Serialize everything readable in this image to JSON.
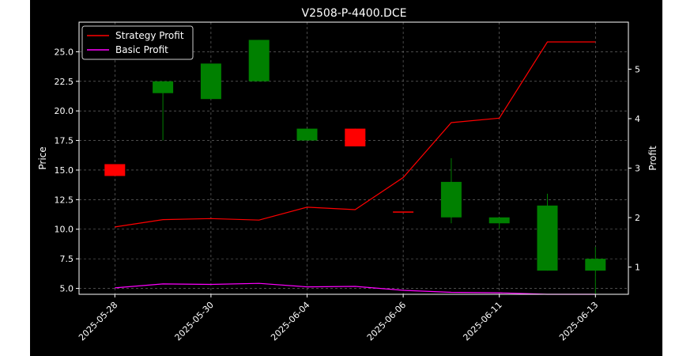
{
  "chart_data": {
    "type": "candlestick",
    "title": "V2508-P-4400.DCE",
    "ylabel_left": "Price",
    "ylabel_right": "Profit",
    "x_tick_labels": [
      "2025-05-28",
      "2025-05-30",
      "2025-06-04",
      "2025-06-06",
      "2025-06-11",
      "2025-06-13"
    ],
    "y_left_ticks": [
      "5.0",
      "7.5",
      "10.0",
      "12.5",
      "15.0",
      "17.5",
      "20.0",
      "22.5",
      "25.0"
    ],
    "y_right_ticks": [
      "1",
      "2",
      "3",
      "4",
      "5"
    ],
    "ylim_left": [
      4.5,
      27.5
    ],
    "ylim_right": [
      0.45,
      5.95
    ],
    "grid": true,
    "legend_position": "top-left",
    "candles": [
      {
        "open": 14.5,
        "close": 15.5,
        "high": 15.5,
        "low": 14.5,
        "color": "red"
      },
      {
        "open": 21.5,
        "close": 22.5,
        "high": 22.5,
        "low": 17.5,
        "color": "green"
      },
      {
        "open": 21.0,
        "close": 24.0,
        "high": 24.0,
        "low": 21.0,
        "color": "green"
      },
      {
        "open": 22.5,
        "close": 26.0,
        "high": 26.0,
        "low": 22.5,
        "color": "green"
      },
      {
        "open": 17.5,
        "close": 18.5,
        "high": 18.5,
        "low": 17.5,
        "color": "green"
      },
      {
        "open": 18.5,
        "close": 17.0,
        "high": 18.5,
        "low": 17.0,
        "color": "red"
      },
      {
        "open": 11.5,
        "close": 11.5,
        "high": 11.5,
        "low": 11.5,
        "color": "red"
      },
      {
        "open": 11.0,
        "close": 14.0,
        "high": 16.0,
        "low": 10.5,
        "color": "green"
      },
      {
        "open": 10.5,
        "close": 11.0,
        "high": 11.0,
        "low": 10.0,
        "color": "green"
      },
      {
        "open": 6.5,
        "close": 12.0,
        "high": 13.0,
        "low": 6.5,
        "color": "green"
      },
      {
        "open": 6.5,
        "close": 7.5,
        "high": 8.5,
        "low": 4.5,
        "color": "green"
      }
    ],
    "series": [
      {
        "name": "Strategy Profit",
        "color": "#ff0000",
        "values": [
          1.81,
          1.96,
          1.98,
          1.95,
          2.21,
          2.16,
          2.81,
          3.92,
          4.01,
          5.55,
          5.55
        ]
      },
      {
        "name": "Basic Profit",
        "color": "#ff00ff",
        "values": [
          0.58,
          0.66,
          0.65,
          0.67,
          0.6,
          0.61,
          0.53,
          0.49,
          0.48,
          0.45,
          0.45
        ]
      }
    ]
  }
}
